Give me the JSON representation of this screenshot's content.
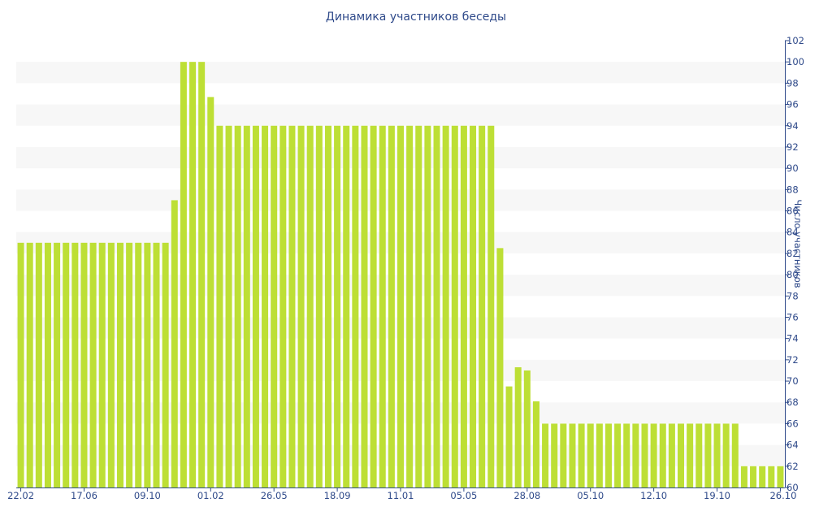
{
  "chart_data": {
    "type": "bar",
    "title": "Динамика участников беседы",
    "xlabel": "",
    "ylabel": "Число участников",
    "ylim": [
      60,
      102
    ],
    "y_ticks": [
      60,
      62,
      64,
      66,
      68,
      70,
      72,
      74,
      76,
      78,
      80,
      82,
      84,
      86,
      88,
      90,
      92,
      94,
      96,
      98,
      100,
      102
    ],
    "x_tick_labels": [
      "22.02",
      "17.06",
      "09.10",
      "01.02",
      "26.05",
      "18.09",
      "11.01",
      "05.05",
      "28.08",
      "05.10",
      "12.10",
      "19.10",
      "26.10"
    ],
    "x_tick_bar_index": [
      0,
      7,
      14,
      21,
      28,
      35,
      42,
      49,
      56,
      63,
      70,
      77,
      84
    ],
    "values": [
      83,
      83,
      83,
      83,
      83,
      83,
      83,
      83,
      83,
      83,
      83,
      83,
      83,
      83,
      83,
      83,
      83,
      87,
      100,
      100,
      100,
      96.7,
      94,
      94,
      94,
      94,
      94,
      94,
      94,
      94,
      94,
      94,
      94,
      94,
      94,
      94,
      94,
      94,
      94,
      94,
      94,
      94,
      94,
      94,
      94,
      94,
      94,
      94,
      94,
      94,
      94,
      94,
      94,
      82.5,
      69.5,
      71.3,
      71,
      68.1,
      66,
      66,
      66,
      66,
      66,
      66,
      66,
      66,
      66,
      66,
      66,
      66,
      66,
      66,
      66,
      66,
      66,
      66,
      66,
      66,
      66,
      66,
      62,
      62,
      62,
      62,
      62
    ],
    "colors": {
      "bar": "#bddf35",
      "band": "#f7f7f7",
      "text": "#2f4a8a",
      "axis": "#2f4a8a"
    },
    "grid": "alternating horizontal bands",
    "y_axis_position": "right",
    "legend": "none"
  }
}
